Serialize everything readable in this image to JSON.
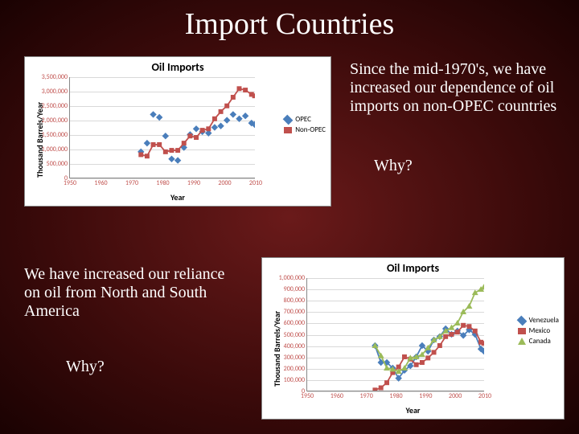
{
  "title": "Import Countries",
  "paragraph1": "Since the mid-1970's, we have increased our dependence of oil imports on non-OPEC countries",
  "why1": "Why?",
  "paragraph2": "We have increased our reliance on oil from North and South America",
  "why2": "Why?",
  "chart1": {
    "title": "Oil Imports",
    "xlabel": "Year",
    "ylabel": "Thousand Barrels/Year",
    "xlim": [
      1950,
      2010
    ],
    "xtick_step": 10,
    "ylim": [
      0,
      3500000
    ],
    "ytick_step": 500000,
    "grid_color": "#d9d9d9",
    "series": [
      {
        "name": "OPEC",
        "color": "#4a7ebb",
        "marker": "diamond",
        "points": [
          [
            1973,
            900000
          ],
          [
            1975,
            1200000
          ],
          [
            1977,
            2200000
          ],
          [
            1979,
            2100000
          ],
          [
            1981,
            1450000
          ],
          [
            1983,
            650000
          ],
          [
            1985,
            600000
          ],
          [
            1987,
            1050000
          ],
          [
            1989,
            1500000
          ],
          [
            1991,
            1700000
          ],
          [
            1993,
            1600000
          ],
          [
            1995,
            1550000
          ],
          [
            1997,
            1750000
          ],
          [
            1999,
            1800000
          ],
          [
            2001,
            2000000
          ],
          [
            2003,
            2200000
          ],
          [
            2005,
            2050000
          ],
          [
            2007,
            2150000
          ],
          [
            2009,
            1900000
          ],
          [
            2010,
            1850000
          ]
        ]
      },
      {
        "name": "Non-OPEC",
        "color": "#c0504d",
        "marker": "square",
        "line": true,
        "points": [
          [
            1973,
            800000
          ],
          [
            1975,
            750000
          ],
          [
            1977,
            1150000
          ],
          [
            1979,
            1150000
          ],
          [
            1981,
            900000
          ],
          [
            1983,
            950000
          ],
          [
            1985,
            950000
          ],
          [
            1987,
            1200000
          ],
          [
            1989,
            1450000
          ],
          [
            1991,
            1400000
          ],
          [
            1993,
            1650000
          ],
          [
            1995,
            1700000
          ],
          [
            1997,
            2050000
          ],
          [
            1999,
            2300000
          ],
          [
            2001,
            2500000
          ],
          [
            2003,
            2800000
          ],
          [
            2005,
            3100000
          ],
          [
            2007,
            3050000
          ],
          [
            2009,
            2900000
          ],
          [
            2010,
            2850000
          ]
        ]
      }
    ]
  },
  "chart2": {
    "title": "Oil Imports",
    "xlabel": "Year",
    "ylabel": "Thousand Barrels/Year",
    "xlim": [
      1950,
      2010
    ],
    "xtick_step": 10,
    "ylim": [
      0,
      1000000
    ],
    "ytick_step": 100000,
    "grid_color": "#d9d9d9",
    "series": [
      {
        "name": "Venezuela",
        "color": "#4a7ebb",
        "marker": "diamond",
        "line": true,
        "points": [
          [
            1973,
            400000
          ],
          [
            1975,
            250000
          ],
          [
            1977,
            250000
          ],
          [
            1979,
            200000
          ],
          [
            1981,
            110000
          ],
          [
            1983,
            180000
          ],
          [
            1985,
            220000
          ],
          [
            1987,
            300000
          ],
          [
            1989,
            400000
          ],
          [
            1991,
            350000
          ],
          [
            1993,
            450000
          ],
          [
            1995,
            480000
          ],
          [
            1997,
            550000
          ],
          [
            1999,
            500000
          ],
          [
            2001,
            530000
          ],
          [
            2003,
            490000
          ],
          [
            2005,
            540000
          ],
          [
            2007,
            500000
          ],
          [
            2009,
            370000
          ],
          [
            2010,
            350000
          ]
        ]
      },
      {
        "name": "Mexico",
        "color": "#c0504d",
        "marker": "square",
        "line": true,
        "points": [
          [
            1973,
            5000
          ],
          [
            1975,
            25000
          ],
          [
            1977,
            70000
          ],
          [
            1979,
            160000
          ],
          [
            1981,
            210000
          ],
          [
            1983,
            300000
          ],
          [
            1985,
            280000
          ],
          [
            1987,
            230000
          ],
          [
            1989,
            250000
          ],
          [
            1991,
            290000
          ],
          [
            1993,
            340000
          ],
          [
            1995,
            400000
          ],
          [
            1997,
            480000
          ],
          [
            1999,
            500000
          ],
          [
            2001,
            520000
          ],
          [
            2003,
            580000
          ],
          [
            2005,
            570000
          ],
          [
            2007,
            530000
          ],
          [
            2009,
            430000
          ],
          [
            2010,
            420000
          ]
        ]
      },
      {
        "name": "Canada",
        "color": "#9bbb59",
        "marker": "triangle",
        "line": true,
        "points": [
          [
            1973,
            400000
          ],
          [
            1975,
            310000
          ],
          [
            1977,
            200000
          ],
          [
            1979,
            190000
          ],
          [
            1981,
            170000
          ],
          [
            1983,
            200000
          ],
          [
            1985,
            290000
          ],
          [
            1987,
            300000
          ],
          [
            1989,
            320000
          ],
          [
            1991,
            380000
          ],
          [
            1993,
            450000
          ],
          [
            1995,
            480000
          ],
          [
            1997,
            530000
          ],
          [
            1999,
            560000
          ],
          [
            2001,
            600000
          ],
          [
            2003,
            700000
          ],
          [
            2005,
            750000
          ],
          [
            2007,
            870000
          ],
          [
            2009,
            900000
          ],
          [
            2010,
            920000
          ]
        ]
      }
    ]
  }
}
